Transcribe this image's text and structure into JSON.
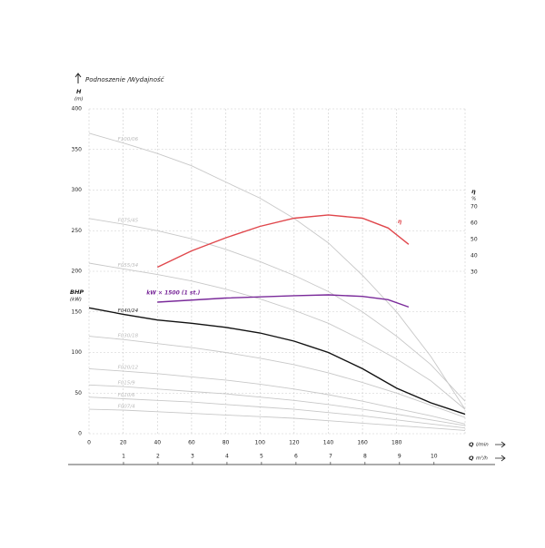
{
  "chart_data": {
    "type": "line",
    "title": "Podnoszenie /Wydajność",
    "y_label": "H",
    "y_unit": "(m)",
    "y2_label": "η",
    "y2_unit": "%",
    "bhp_label": "BHP",
    "bhp_unit": "(kW)",
    "x_label": "Q",
    "x_unit": "l/min",
    "x2_label": "Q",
    "x2_unit": "m³/h",
    "x": [
      0,
      20,
      40,
      60,
      80,
      100,
      120,
      140,
      160,
      180,
      200,
      220
    ],
    "xlim": [
      0,
      220
    ],
    "xticks": [
      0,
      20,
      40,
      60,
      80,
      100,
      120,
      140,
      160,
      180
    ],
    "x2lim": [
      0,
      10.9
    ],
    "x2ticks": [
      1,
      2,
      3,
      4,
      5,
      6,
      7,
      8,
      9,
      10
    ],
    "ylim": [
      0,
      400
    ],
    "yticks": [
      0,
      50,
      100,
      150,
      200,
      250,
      300,
      350,
      400
    ],
    "y2lim": [
      -69,
      130
    ],
    "y2ticks": [
      30,
      40,
      50,
      60,
      70
    ],
    "grid": true,
    "series": [
      {
        "name": "F100/06",
        "color": "#c8c8c8",
        "values": [
          370,
          358,
          345,
          330,
          310,
          290,
          265,
          235,
          195,
          150,
          95,
          30
        ]
      },
      {
        "name": "F075/45",
        "color": "#c8c8c8",
        "values": [
          265,
          258,
          250,
          240,
          227,
          212,
          195,
          175,
          150,
          120,
          85,
          40
        ]
      },
      {
        "name": "F055/34",
        "color": "#c8c8c8",
        "values": [
          210,
          203,
          196,
          188,
          178,
          166,
          152,
          136,
          115,
          92,
          65,
          30
        ]
      },
      {
        "name": "F040/24",
        "color": "#111111",
        "values": [
          155,
          147,
          140,
          136,
          131,
          124,
          114,
          100,
          80,
          56,
          38,
          24
        ]
      },
      {
        "name": "F030/18",
        "color": "#c8c8c8",
        "values": [
          120,
          116,
          111,
          106,
          100,
          93,
          85,
          75,
          63,
          50,
          35,
          20
        ]
      },
      {
        "name": "F020/12",
        "color": "#c8c8c8",
        "values": [
          80,
          77,
          74,
          70,
          66,
          61,
          55,
          48,
          40,
          31,
          22,
          12
        ]
      },
      {
        "name": "F015/9",
        "color": "#c8c8c8",
        "values": [
          60,
          58,
          55,
          52,
          49,
          45,
          41,
          36,
          30,
          24,
          17,
          10
        ]
      },
      {
        "name": "F010/6",
        "color": "#c8c8c8",
        "values": [
          45,
          43,
          41,
          39,
          36,
          33,
          30,
          26,
          22,
          17,
          12,
          7
        ]
      },
      {
        "name": "F007/4",
        "color": "#c8c8c8",
        "values": [
          30,
          29,
          27,
          25,
          23,
          21,
          19,
          16,
          13,
          10,
          7,
          4
        ]
      },
      {
        "name": "η",
        "color": "#e0474c",
        "axis": "y2",
        "x": [
          40,
          60,
          80,
          100,
          120,
          140,
          160,
          175,
          187
        ],
        "values": [
          33,
          43,
          51,
          58,
          63,
          65,
          63,
          57,
          47
        ]
      },
      {
        "name": "kW × 1500 (1 st.)",
        "color": "#7a2a9a",
        "x": [
          40,
          80,
          120,
          140,
          160,
          175,
          187
        ],
        "values": [
          162,
          167,
          170,
          171,
          169,
          165,
          156
        ]
      }
    ]
  }
}
